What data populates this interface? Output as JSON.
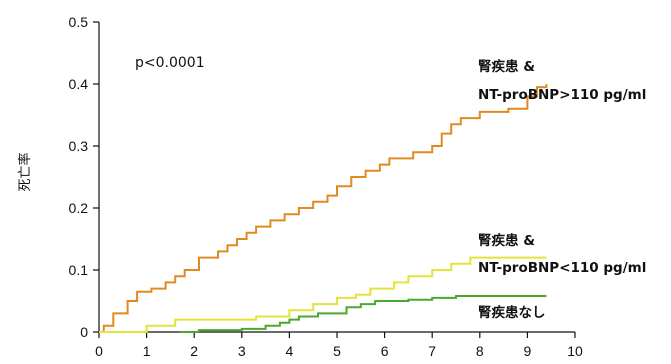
{
  "chart_data": {
    "type": "line",
    "title": "",
    "xlabel": "",
    "ylabel": "死亡率",
    "xlim": [
      0,
      10
    ],
    "ylim": [
      0,
      0.5
    ],
    "xticks": [
      "0",
      "1",
      "2",
      "3",
      "4",
      "5",
      "6",
      "7",
      "8",
      "9",
      "10"
    ],
    "yticks": [
      "0",
      "0.1",
      "0.2",
      "0.3",
      "0.4",
      "0.5"
    ],
    "grid": false,
    "annotation": "p<0.0001",
    "series": [
      {
        "name": "腎疾患 & NT-proBNP>110 pg/ml",
        "label_lines": [
          "腎疾患 &",
          "NT-proBNP>110 pg/ml"
        ],
        "color": "#E08A20",
        "step": true,
        "points": [
          [
            0,
            0
          ],
          [
            0.1,
            0.01
          ],
          [
            0.3,
            0.03
          ],
          [
            0.6,
            0.05
          ],
          [
            0.8,
            0.065
          ],
          [
            1.1,
            0.07
          ],
          [
            1.4,
            0.08
          ],
          [
            1.6,
            0.09
          ],
          [
            1.8,
            0.1
          ],
          [
            2.1,
            0.12
          ],
          [
            2.5,
            0.13
          ],
          [
            2.7,
            0.14
          ],
          [
            2.9,
            0.15
          ],
          [
            3.1,
            0.16
          ],
          [
            3.3,
            0.17
          ],
          [
            3.6,
            0.18
          ],
          [
            3.9,
            0.19
          ],
          [
            4.2,
            0.2
          ],
          [
            4.5,
            0.21
          ],
          [
            4.8,
            0.22
          ],
          [
            5.0,
            0.235
          ],
          [
            5.3,
            0.25
          ],
          [
            5.6,
            0.26
          ],
          [
            5.9,
            0.27
          ],
          [
            6.1,
            0.28
          ],
          [
            6.6,
            0.29
          ],
          [
            7.0,
            0.3
          ],
          [
            7.2,
            0.32
          ],
          [
            7.4,
            0.335
          ],
          [
            7.6,
            0.345
          ],
          [
            8.0,
            0.355
          ],
          [
            8.6,
            0.36
          ],
          [
            9.0,
            0.38
          ],
          [
            9.2,
            0.395
          ],
          [
            9.4,
            0.4
          ]
        ]
      },
      {
        "name": "腎疾患 & NT-proBNP<110 pg/ml",
        "label_lines": [
          "腎疾患 &",
          "NT-proBNP<110 pg/ml"
        ],
        "color": "#E3E33A",
        "step": true,
        "points": [
          [
            0,
            0
          ],
          [
            1.0,
            0.01
          ],
          [
            1.6,
            0.02
          ],
          [
            3.3,
            0.025
          ],
          [
            4.0,
            0.035
          ],
          [
            4.5,
            0.045
          ],
          [
            5.0,
            0.055
          ],
          [
            5.4,
            0.06
          ],
          [
            5.7,
            0.07
          ],
          [
            6.2,
            0.08
          ],
          [
            6.5,
            0.09
          ],
          [
            7.0,
            0.1
          ],
          [
            7.4,
            0.11
          ],
          [
            7.8,
            0.12
          ],
          [
            9.4,
            0.12
          ]
        ]
      },
      {
        "name": "腎疾患なし",
        "label_lines": [
          "腎疾患なし"
        ],
        "color": "#4BA82E",
        "step": true,
        "points": [
          [
            1.7,
            0
          ],
          [
            2.1,
            0.003
          ],
          [
            3.0,
            0.005
          ],
          [
            3.5,
            0.01
          ],
          [
            3.8,
            0.015
          ],
          [
            4.0,
            0.02
          ],
          [
            4.2,
            0.025
          ],
          [
            4.6,
            0.03
          ],
          [
            5.2,
            0.04
          ],
          [
            5.5,
            0.045
          ],
          [
            5.8,
            0.05
          ],
          [
            6.5,
            0.052
          ],
          [
            7.0,
            0.055
          ],
          [
            7.5,
            0.058
          ],
          [
            9.4,
            0.058
          ]
        ]
      }
    ]
  }
}
